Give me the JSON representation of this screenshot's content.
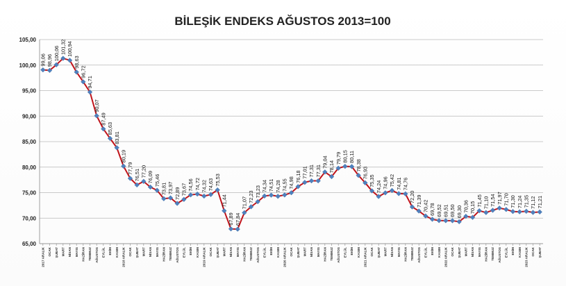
{
  "chart_data": {
    "type": "line",
    "title": "BİLEŞİK ENDEKS AĞUSTOS 2013=100",
    "ylim": [
      65,
      105
    ],
    "yticks": [
      "65,00",
      "70,00",
      "75,00",
      "80,00",
      "85,00",
      "90,00",
      "95,00",
      "100,00",
      "105,00"
    ],
    "grid": true,
    "legend": "none",
    "colors": {
      "line": "#c0141b",
      "marker": "#4f81bd"
    },
    "categories": [
      "2017 ARALIK",
      "OCAK",
      "ŞUBAT",
      "MART",
      "NİSAN",
      "MAYIS",
      "HAZİRAN",
      "TEMMUZ",
      "AĞUSTOS",
      "EYLÜL",
      "EKİM",
      "KASIM",
      "2018 ARALIK",
      "OCAK",
      "ŞUBAT",
      "MART",
      "NİSAN",
      "MAYIS",
      "HAZİRAN",
      "TEMMUZ",
      "AĞUSTOS",
      "EYLÜL",
      "EKİM",
      "KASIM",
      "2019 ARALIK",
      "OCAK",
      "ŞUBAT",
      "MART",
      "NİSAN",
      "MAYIS",
      "HAZİRAN",
      "TEMMUZ",
      "AĞUSTOS",
      "EYLÜL",
      "EKİM",
      "KASIM",
      "2020 ARALIK",
      "OCAK",
      "ŞUBAT",
      "MART",
      "NİSAN",
      "MAYIS",
      "HAZİRAN",
      "TEMMUZ",
      "AĞUSTOS",
      "EYLÜL",
      "EKİM",
      "KASIM",
      "2021 ARALIK",
      "OCAK",
      "ŞUBAT",
      "MART",
      "NİSAN",
      "MAYIS",
      "HAZİRAN",
      "TEMMUZ",
      "AĞUSTOS",
      "EYLÜL",
      "EKİM",
      "KASIM",
      "2022 ARALIK",
      "OCAK",
      "ŞUBAT",
      "MART",
      "NİSAN",
      "MAYIS",
      "HAZİRAN",
      "TEMMUZ",
      "AĞUSTOS",
      "EYLÜL",
      "EKİM",
      "KASIM",
      "2023 ARALIK",
      "OCAK",
      "ŞUBAT"
    ],
    "values": [
      99.06,
      98.96,
      100.06,
      101.32,
      100.94,
      98.63,
      96.72,
      94.71,
      90.07,
      87.49,
      85.63,
      83.81,
      80.19,
      77.79,
      76.51,
      77.2,
      76.09,
      75.46,
      73.81,
      73.97,
      72.89,
      73.67,
      74.56,
      74.72,
      74.32,
      74.63,
      75.53,
      71.44,
      67.89,
      67.84,
      71.07,
      72.23,
      73.23,
      74.34,
      74.51,
      74.28,
      74.55,
      74.98,
      76.18,
      77.01,
      77.31,
      77.31,
      79.04,
      78.14,
      79.79,
      80.15,
      80.11,
      78.38,
      76.93,
      75.35,
      74.24,
      74.96,
      75.42,
      74.81,
      74.76,
      72.2,
      71.39,
      70.42,
      69.78,
      69.52,
      69.51,
      69.5,
      69.3,
      70.36,
      70.15,
      71.45,
      71.1,
      71.54,
      71.97,
      71.7,
      71.3,
      71.24,
      71.35,
      71.12,
      71.21
    ],
    "value_labels": [
      "99,06",
      "98,96",
      "100,06",
      "101,32",
      "100,94",
      "98,63",
      "96,72",
      "94,71",
      "90,07",
      "87,49",
      "85,63",
      "83,81",
      "80,19",
      "77,79",
      "76,51",
      "77,20",
      "76,09",
      "75,46",
      "73,81",
      "73,97",
      "72,89",
      "73,67",
      "74,56",
      "74,72",
      "74,32",
      "74,63",
      "75,53",
      "71,44",
      "67,89",
      "67,84",
      "71,07",
      "72,23",
      "73,23",
      "74,34",
      "74,51",
      "74,28",
      "74,55",
      "74,98",
      "76,18",
      "77,01",
      "77,31",
      "77,31",
      "79,04",
      "78,14",
      "79,79",
      "80,15",
      "80,11",
      "78,38",
      "76,93",
      "75,35",
      "74,24",
      "74,96",
      "75,42",
      "74,81",
      "74,76",
      "72,20",
      "71,39",
      "70,42",
      "69,78",
      "69,52",
      "69,51",
      "69,50",
      "69,30",
      "70,36",
      "70,15",
      "71,45",
      "71,10",
      "71,54",
      "71,97",
      "71,70",
      "71,30",
      "71,24",
      "71,35",
      "71,12",
      "71,21"
    ]
  }
}
